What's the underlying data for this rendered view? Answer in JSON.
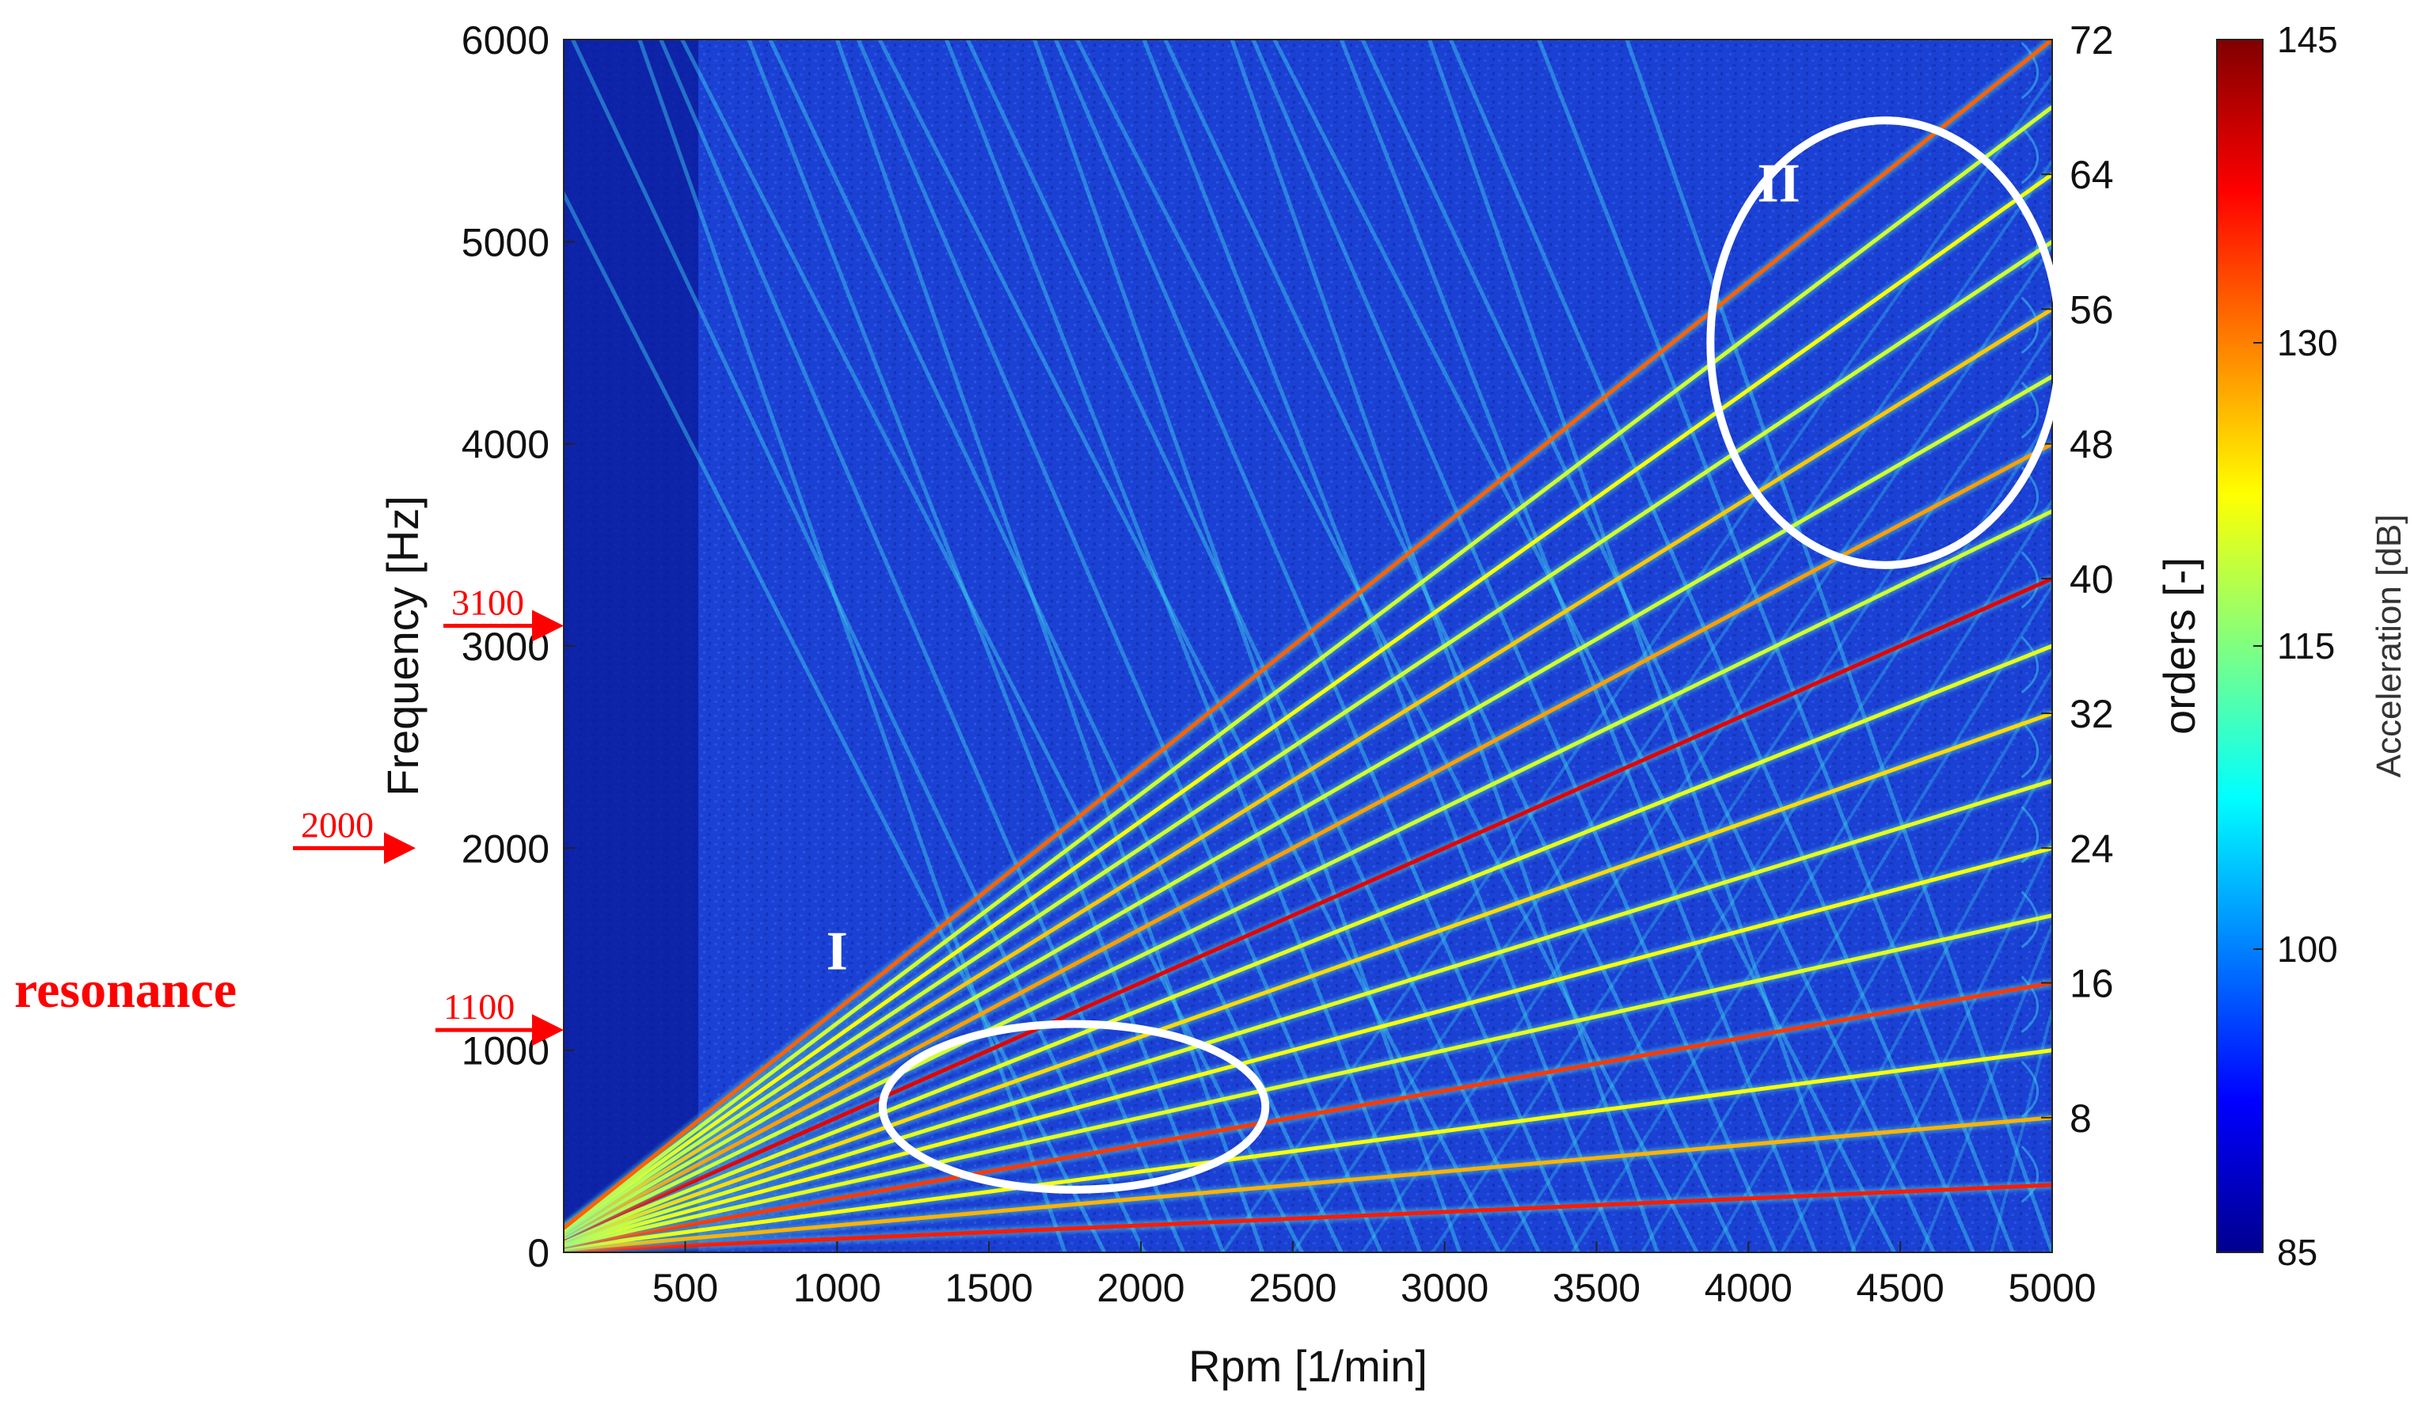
{
  "chart_data": {
    "type": "heatmap",
    "title": "",
    "xlabel": "Rpm [1/min]",
    "ylabel": "Frequency [Hz]",
    "y2label": "orders [-]",
    "colorbar_label": "Acceleration [dB]",
    "xlim": [
      100,
      5000
    ],
    "ylim": [
      0,
      6000
    ],
    "x_ticks": [
      500,
      1000,
      1500,
      2000,
      2500,
      3000,
      3500,
      4000,
      4500,
      5000
    ],
    "x_tick_labels": [
      "500",
      "1000",
      "1500",
      "2000",
      "2500",
      "3000",
      "3500",
      "4000",
      "4500",
      "5000"
    ],
    "y_ticks": [
      0,
      1000,
      2000,
      3000,
      4000,
      5000,
      6000
    ],
    "y_tick_labels": [
      "0",
      "1000",
      "2000",
      "3000",
      "4000",
      "5000",
      "6000"
    ],
    "y2_ticks": [
      8,
      16,
      24,
      32,
      40,
      48,
      56,
      64,
      72
    ],
    "y2_tick_labels": [
      "8",
      "16",
      "24",
      "32",
      "40",
      "48",
      "56",
      "64",
      "72"
    ],
    "colorbar_ticks": [
      85,
      100,
      115,
      130,
      145
    ],
    "colorbar_tick_labels": [
      "85",
      "100",
      "115",
      "130",
      "145"
    ],
    "colorbar_range": [
      85,
      145
    ],
    "colormap": [
      "#00008f",
      "#0000ff",
      "#0080ff",
      "#00ffff",
      "#80ff80",
      "#ffff00",
      "#ff8000",
      "#ff0000",
      "#800000"
    ],
    "background_color": "#1a3fd0",
    "order_lines": [
      {
        "order": 4,
        "level": 0.85
      },
      {
        "order": 8,
        "level": 0.7
      },
      {
        "order": 12,
        "level": 0.62
      },
      {
        "order": 16,
        "level": 0.82
      },
      {
        "order": 20,
        "level": 0.6
      },
      {
        "order": 24,
        "level": 0.62
      },
      {
        "order": 28,
        "level": 0.6
      },
      {
        "order": 32,
        "level": 0.66
      },
      {
        "order": 36,
        "level": 0.6
      },
      {
        "order": 40,
        "level": 0.9
      },
      {
        "order": 44,
        "level": 0.58
      },
      {
        "order": 48,
        "level": 0.72
      },
      {
        "order": 52,
        "level": 0.58
      },
      {
        "order": 56,
        "level": 0.68
      },
      {
        "order": 60,
        "level": 0.58
      },
      {
        "order": 64,
        "level": 0.62
      },
      {
        "order": 68,
        "level": 0.58
      },
      {
        "order": 72,
        "level": 0.78
      }
    ],
    "annotations": [
      {
        "label": "3100",
        "frequency": 3100
      },
      {
        "label": "2000",
        "frequency": 2000
      },
      {
        "label": "1100",
        "frequency": 1100
      }
    ],
    "side_label": "resonance",
    "regions": [
      {
        "label": "I",
        "cx": 1780,
        "cy": 720,
        "rx_rpm": 1260,
        "ry_hz": 820
      },
      {
        "label": "II",
        "cx": 4450,
        "cy": 4500,
        "rx_rpm": 1150,
        "ry_hz": 2200
      }
    ],
    "annotation_color": "#ff0000",
    "region_color": "#ffffff"
  }
}
